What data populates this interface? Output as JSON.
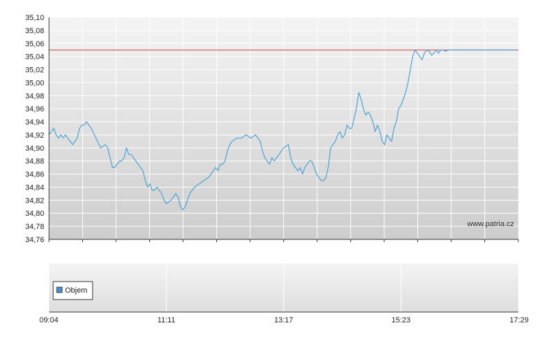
{
  "watermark": "www.patria.cz",
  "colors": {
    "price_line": "#4aa3d6",
    "reference_line": "#d23c3c",
    "grid": "#ffffff",
    "axis": "#333333",
    "legend_swatch": "#4a90c8"
  },
  "chart_data": [
    {
      "type": "line",
      "title": "",
      "xlabel": "",
      "ylabel": "",
      "ylim": [
        34.76,
        35.1
      ],
      "yticks": [
        "35,10",
        "35,08",
        "35,06",
        "35,04",
        "35,02",
        "35,00",
        "34,98",
        "34,96",
        "34,94",
        "34,92",
        "34,90",
        "34,88",
        "34,86",
        "34,84",
        "34,82",
        "34,80",
        "34,78",
        "34,76"
      ],
      "reference_value": 35.05,
      "grid": true,
      "series": [
        {
          "time_fraction": [
            0.0,
            0.005,
            0.01,
            0.015,
            0.02,
            0.025,
            0.03,
            0.035,
            0.04,
            0.05,
            0.06,
            0.065,
            0.07,
            0.075,
            0.08,
            0.085,
            0.09,
            0.1,
            0.11,
            0.12,
            0.125,
            0.13,
            0.135,
            0.14,
            0.145,
            0.15,
            0.155,
            0.16,
            0.165,
            0.17,
            0.175,
            0.18,
            0.185,
            0.19,
            0.195,
            0.2,
            0.205,
            0.21,
            0.215,
            0.22,
            0.225,
            0.23,
            0.235,
            0.24,
            0.245,
            0.25,
            0.26,
            0.265,
            0.27,
            0.275,
            0.28,
            0.285,
            0.29,
            0.3,
            0.31,
            0.32,
            0.33,
            0.34,
            0.345,
            0.35,
            0.355,
            0.36,
            0.365,
            0.37,
            0.375,
            0.38,
            0.385,
            0.39,
            0.4,
            0.41,
            0.42,
            0.43,
            0.44,
            0.45,
            0.455,
            0.46,
            0.465,
            0.47,
            0.475,
            0.48,
            0.49,
            0.5,
            0.51,
            0.515,
            0.52,
            0.525,
            0.53,
            0.535,
            0.54,
            0.545,
            0.55,
            0.555,
            0.56,
            0.565,
            0.57,
            0.575,
            0.58,
            0.585,
            0.59,
            0.595,
            0.6,
            0.605,
            0.61,
            0.615,
            0.62,
            0.625,
            0.63,
            0.635,
            0.64,
            0.645,
            0.65,
            0.655,
            0.66,
            0.665,
            0.67,
            0.675,
            0.68,
            0.685,
            0.69,
            0.695,
            0.7,
            0.705,
            0.71,
            0.715,
            0.72,
            0.725,
            0.73,
            0.735,
            0.74,
            0.745,
            0.75,
            0.755,
            0.76,
            0.765,
            0.77,
            0.775,
            0.78,
            0.785,
            0.79,
            0.795,
            0.8,
            0.805,
            0.81,
            0.815,
            0.82,
            0.825,
            0.83,
            0.835,
            0.84,
            0.845,
            0.85,
            0.855,
            0.86,
            0.865,
            0.87,
            0.875,
            0.88,
            0.885,
            0.89,
            0.895,
            0.9,
            0.905,
            0.91,
            0.915,
            0.92,
            0.925,
            0.93,
            0.935,
            0.94,
            0.945,
            0.95,
            0.955,
            0.96,
            0.965,
            0.97,
            0.975,
            0.98,
            0.985,
            0.99,
            0.995,
            1.0
          ],
          "values": [
            34.92,
            34.925,
            34.93,
            34.92,
            34.915,
            34.92,
            34.915,
            34.92,
            34.915,
            34.905,
            34.915,
            34.93,
            34.935,
            34.935,
            34.94,
            34.935,
            34.93,
            34.915,
            34.9,
            34.905,
            34.9,
            34.885,
            34.87,
            34.87,
            34.875,
            34.88,
            34.88,
            34.885,
            34.9,
            34.89,
            34.89,
            34.885,
            34.88,
            34.875,
            34.87,
            34.865,
            34.85,
            34.84,
            34.845,
            34.835,
            34.835,
            34.84,
            34.835,
            34.83,
            34.82,
            34.815,
            34.82,
            34.825,
            34.83,
            34.825,
            34.81,
            34.805,
            34.81,
            34.83,
            34.84,
            34.845,
            34.85,
            34.855,
            34.86,
            34.865,
            34.87,
            34.865,
            34.875,
            34.875,
            34.88,
            34.895,
            34.905,
            34.91,
            34.915,
            34.915,
            34.92,
            34.915,
            34.92,
            34.91,
            34.895,
            34.885,
            34.88,
            34.875,
            34.885,
            34.88,
            34.89,
            34.9,
            34.905,
            34.885,
            34.875,
            34.87,
            34.865,
            34.87,
            34.86,
            34.87,
            34.875,
            34.88,
            34.88,
            34.87,
            34.86,
            34.855,
            34.85,
            34.85,
            34.855,
            34.87,
            34.9,
            34.905,
            34.91,
            34.92,
            34.925,
            34.915,
            34.92,
            34.935,
            34.93,
            34.93,
            34.945,
            34.96,
            34.985,
            34.975,
            34.96,
            34.95,
            34.955,
            34.95,
            34.94,
            34.925,
            34.935,
            34.925,
            34.91,
            34.905,
            34.92,
            34.915,
            34.91,
            34.93,
            34.94,
            34.96,
            34.965,
            34.975,
            34.985,
            35.0,
            35.02,
            35.04,
            35.05,
            35.045,
            35.04,
            35.035,
            35.045,
            35.05,
            35.048,
            35.042,
            35.045,
            35.05,
            35.045,
            35.05,
            35.05,
            35.048,
            35.05,
            35.05,
            35.05,
            35.05,
            35.05,
            35.05,
            35.05,
            35.05,
            35.05,
            35.05,
            35.05,
            35.05,
            35.05,
            35.05,
            35.05,
            35.05,
            35.05,
            35.05,
            35.05,
            35.05,
            35.05,
            35.05,
            35.05,
            35.05,
            35.05,
            35.05,
            35.05,
            35.05,
            35.05,
            35.05
          ]
        }
      ]
    },
    {
      "type": "bar",
      "title": "",
      "legend": [
        "Objem"
      ],
      "legend_placement": "left",
      "x_tick_labels": [
        "09:04",
        "11:11",
        "13:17",
        "15:23",
        "17:29"
      ],
      "grid": true
    }
  ]
}
